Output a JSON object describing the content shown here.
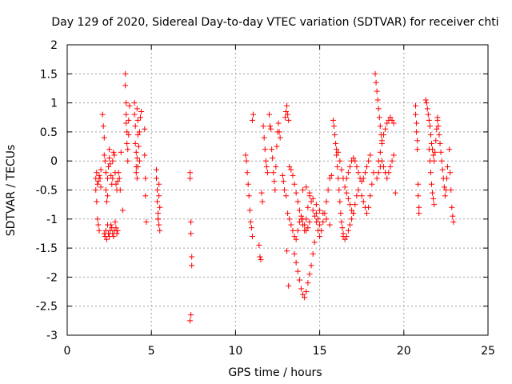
{
  "chart_data": {
    "type": "scatter",
    "title": "Day 129 of 2020, Sidereal Day-to-day VTEC variation (SDTVAR) for receiver chti",
    "xlabel": "GPS time / hours",
    "ylabel": "SDTVAR / TECUs",
    "xlim": [
      0,
      25
    ],
    "ylim": [
      -3,
      2
    ],
    "xticks": [
      0,
      5,
      10,
      15,
      20,
      25
    ],
    "yticks": [
      -3,
      -2.5,
      -2,
      -1.5,
      -1,
      -0.5,
      0,
      0.5,
      1,
      1.5,
      2
    ],
    "grid": true,
    "marker": "+",
    "color": "#ff0000",
    "series": [
      {
        "name": "SDTVAR",
        "x": [
          1.7,
          1.7,
          1.75,
          1.75,
          1.8,
          1.8,
          1.85,
          1.85,
          1.9,
          1.9,
          1.95,
          2.0,
          2.0,
          2.1,
          2.15,
          2.2,
          2.2,
          2.25,
          2.3,
          2.3,
          2.35,
          2.4,
          2.4,
          2.45,
          2.5,
          2.5,
          2.55,
          2.6,
          2.65,
          2.7,
          2.7,
          2.75,
          2.8,
          2.85,
          2.9,
          2.95,
          3.0,
          3.05,
          2.2,
          2.25,
          2.3,
          2.35,
          2.4,
          2.45,
          2.5,
          2.55,
          2.6,
          2.65,
          2.7,
          2.75,
          2.8,
          2.85,
          2.9,
          2.95,
          3.0,
          3.1,
          3.15,
          3.2,
          3.3,
          3.45,
          3.45,
          3.5,
          3.5,
          3.5,
          3.55,
          3.55,
          3.6,
          3.6,
          3.65,
          3.65,
          3.7,
          4.0,
          4.0,
          4.05,
          4.05,
          4.1,
          4.1,
          4.15,
          4.15,
          4.2,
          4.2,
          4.25,
          4.3,
          4.3,
          4.35,
          4.4,
          4.1,
          4.15,
          4.2,
          4.6,
          4.6,
          4.65,
          4.65,
          4.7,
          5.3,
          5.3,
          5.35,
          5.35,
          5.4,
          5.4,
          5.45,
          5.45,
          5.5,
          5.5,
          5.45,
          5.4,
          7.3,
          7.3,
          7.35,
          7.35,
          7.4,
          7.4,
          7.35,
          7.3,
          10.6,
          10.65,
          10.7,
          10.75,
          10.8,
          10.85,
          10.9,
          10.95,
          11.0,
          11.0,
          11.05,
          11.4,
          11.45,
          11.5,
          11.55,
          11.6,
          11.65,
          11.7,
          11.75,
          11.8,
          11.85,
          11.9,
          12.0,
          12.05,
          12.1,
          12.15,
          12.2,
          12.25,
          12.3,
          12.35,
          12.4,
          12.45,
          12.5,
          12.55,
          12.6,
          12.65,
          12.8,
          12.85,
          12.9,
          12.95,
          13.0,
          13.05,
          13.1,
          13.15,
          13.2,
          13.0,
          13.05,
          13.1,
          13.15,
          13.3,
          13.4,
          13.5,
          13.6,
          13.7,
          13.8,
          13.9,
          14.0,
          14.1,
          14.2,
          14.3,
          14.4,
          14.5,
          14.6,
          14.7,
          14.8,
          14.9,
          15.0,
          13.5,
          13.6,
          13.7,
          13.8,
          13.9,
          14.0,
          14.1,
          14.2,
          14.3,
          14.4,
          14.5,
          14.6,
          14.7,
          13.2,
          13.3,
          13.4,
          13.5,
          13.6,
          13.7,
          13.8,
          13.9,
          14.0,
          14.1,
          14.2,
          14.3,
          14.4,
          14.8,
          14.9,
          15.0,
          15.1,
          15.2,
          15.3,
          15.4,
          15.5,
          15.6,
          15.7,
          14.0,
          14.2,
          14.4,
          14.6,
          14.8,
          15.0,
          15.2,
          15.4,
          15.6,
          15.8,
          15.85,
          15.9,
          15.95,
          16.0,
          16.05,
          16.1,
          16.15,
          16.2,
          16.25,
          16.3,
          16.35,
          16.4,
          16.4,
          16.5,
          16.6,
          16.7,
          16.8,
          16.9,
          17.0,
          17.1,
          17.2,
          17.3,
          16.6,
          16.7,
          16.8,
          16.9,
          17.0,
          17.1,
          17.2,
          17.3,
          17.4,
          17.5,
          17.6,
          17.7,
          17.8,
          17.9,
          18.0,
          16.0,
          16.1,
          16.2,
          16.3,
          16.4,
          16.5,
          16.6,
          16.7,
          16.8,
          16.9,
          17.0,
          17.5,
          17.6,
          17.7,
          17.8,
          17.9,
          18.0,
          18.1,
          18.2,
          18.3,
          18.35,
          18.4,
          18.45,
          18.5,
          18.55,
          18.6,
          18.65,
          18.7,
          18.5,
          18.6,
          18.7,
          18.8,
          18.9,
          19.0,
          19.1,
          19.2,
          19.3,
          19.4,
          18.4,
          18.5,
          18.6,
          18.7,
          18.8,
          18.9,
          19.0,
          19.1,
          19.2,
          19.3,
          19.4,
          19.5,
          20.7,
          20.7,
          20.75,
          20.75,
          20.8,
          20.8,
          20.85,
          20.85,
          20.9,
          20.9,
          21.3,
          21.35,
          21.4,
          21.45,
          21.5,
          21.55,
          21.6,
          21.65,
          21.7,
          21.75,
          21.8,
          21.85,
          21.9,
          21.95,
          22.0,
          21.5,
          21.55,
          21.6,
          21.65,
          21.7,
          21.75,
          21.8,
          22.0,
          22.05,
          22.1,
          22.15,
          22.2,
          22.25,
          22.3,
          22.35,
          22.4,
          22.45,
          22.5,
          22.55,
          22.6,
          22.7,
          22.75,
          22.8,
          22.85,
          22.9,
          22.95
        ],
        "y": [
          -0.3,
          -0.5,
          -0.2,
          -0.7,
          -0.4,
          -1.0,
          -0.35,
          -1.1,
          -0.25,
          -1.2,
          -0.3,
          -0.15,
          -0.45,
          0.8,
          0.6,
          0.4,
          0.1,
          0.0,
          -0.2,
          -0.5,
          -0.7,
          -0.6,
          -0.3,
          -0.1,
          0.05,
          0.2,
          -0.05,
          -0.25,
          -0.4,
          -0.3,
          0.0,
          0.15,
          0.1,
          -0.2,
          -0.4,
          -0.5,
          -0.35,
          -0.2,
          -1.25,
          -1.3,
          -1.2,
          -1.35,
          -1.1,
          -1.25,
          -1.3,
          -1.2,
          -1.1,
          -1.15,
          -1.25,
          -1.3,
          -1.2,
          -1.05,
          -1.15,
          -1.25,
          -1.2,
          -0.3,
          -0.5,
          0.15,
          -0.85,
          1.5,
          1.3,
          1.0,
          0.8,
          0.65,
          0.5,
          0.3,
          0.2,
          0.0,
          0.45,
          0.7,
          0.95,
          1.0,
          0.8,
          0.6,
          0.3,
          0.15,
          -0.1,
          0.05,
          0.9,
          0.7,
          0.45,
          0.25,
          0.0,
          0.5,
          0.75,
          0.85,
          -0.2,
          -0.3,
          -0.1,
          0.55,
          0.1,
          -0.3,
          -0.6,
          -1.05,
          -0.15,
          -0.3,
          -0.5,
          -0.7,
          -0.9,
          -1.0,
          -1.1,
          -0.6,
          -0.8,
          -1.2,
          -0.4,
          -1.0,
          -0.2,
          -0.3,
          -1.05,
          -1.25,
          -1.65,
          -1.8,
          -2.65,
          -2.75,
          0.1,
          0.0,
          -0.2,
          -0.4,
          -0.6,
          -0.85,
          -1.05,
          -1.15,
          -1.3,
          0.7,
          0.8,
          -1.45,
          -1.65,
          -1.7,
          -0.55,
          -0.7,
          0.6,
          0.4,
          0.2,
          0.0,
          -0.1,
          -0.2,
          0.8,
          0.6,
          0.55,
          0.2,
          0.05,
          -0.2,
          -0.35,
          -0.5,
          -0.1,
          0.25,
          0.5,
          0.65,
          0.5,
          0.4,
          -0.25,
          -0.35,
          -0.5,
          0.75,
          0.85,
          0.95,
          0.8,
          0.7,
          -0.1,
          -0.6,
          -1.55,
          -0.9,
          -2.15,
          -0.15,
          -0.25,
          -0.4,
          -0.55,
          -0.7,
          -0.85,
          -1.0,
          -1.1,
          -1.2,
          -1.0,
          -0.8,
          -0.6,
          -0.7,
          -0.85,
          -0.95,
          -1.05,
          -1.2,
          -1.3,
          -1.6,
          -1.75,
          -1.9,
          -2.05,
          -2.2,
          -2.3,
          -2.35,
          -2.25,
          -2.1,
          -1.95,
          -1.8,
          -1.6,
          -1.4,
          -1.0,
          -1.1,
          -1.2,
          -1.3,
          -1.35,
          -1.2,
          -1.05,
          -0.95,
          -1.0,
          -1.1,
          -1.2,
          -1.15,
          -1.05,
          -0.9,
          -1.0,
          -1.1,
          -1.2,
          -1.05,
          -0.9,
          -0.7,
          -0.5,
          -0.3,
          -0.25,
          -0.5,
          -0.45,
          -0.55,
          -0.65,
          -0.75,
          -0.85,
          -0.9,
          -1.0,
          -1.1,
          0.7,
          0.6,
          0.45,
          0.3,
          0.1,
          -0.1,
          -0.3,
          -0.5,
          -0.7,
          -0.9,
          -1.05,
          -1.15,
          -1.25,
          -1.3,
          -1.35,
          -1.3,
          -1.2,
          -1.1,
          -1.0,
          -0.9,
          -0.75,
          -0.6,
          -0.5,
          -0.3,
          -0.2,
          -0.1,
          0.0,
          0.05,
          0.0,
          -0.1,
          -0.2,
          -0.3,
          -0.35,
          -0.3,
          -0.2,
          -0.1,
          0.0,
          0.1,
          0.2,
          0.15,
          0.0,
          -0.15,
          -0.3,
          -0.45,
          -0.55,
          -0.65,
          -0.75,
          -0.85,
          -0.9,
          -0.6,
          -0.7,
          -0.8,
          -0.9,
          -0.8,
          -0.6,
          -0.4,
          -0.2,
          1.5,
          1.35,
          1.2,
          1.05,
          0.9,
          0.75,
          0.6,
          0.45,
          0.35,
          0.0,
          0.15,
          0.3,
          0.45,
          0.55,
          0.65,
          0.7,
          0.75,
          0.7,
          0.65,
          -0.3,
          -0.2,
          -0.1,
          0.0,
          -0.1,
          -0.2,
          -0.3,
          -0.2,
          -0.1,
          0.0,
          0.1,
          -0.55,
          0.95,
          0.8,
          0.65,
          0.5,
          0.35,
          0.2,
          -0.4,
          -0.6,
          -0.8,
          -0.9,
          1.05,
          1.0,
          0.9,
          0.8,
          0.7,
          0.6,
          0.45,
          0.3,
          0.2,
          0.1,
          0.0,
          0.15,
          0.35,
          0.55,
          0.75,
          0.2,
          0.0,
          -0.2,
          -0.4,
          -0.55,
          -0.65,
          -0.75,
          0.7,
          0.6,
          0.45,
          0.3,
          0.15,
          0.0,
          -0.15,
          -0.3,
          -0.45,
          -0.6,
          -0.5,
          -0.3,
          -0.1,
          0.2,
          -0.2,
          -0.5,
          -0.8,
          -0.95,
          -1.05
        ]
      }
    ]
  }
}
